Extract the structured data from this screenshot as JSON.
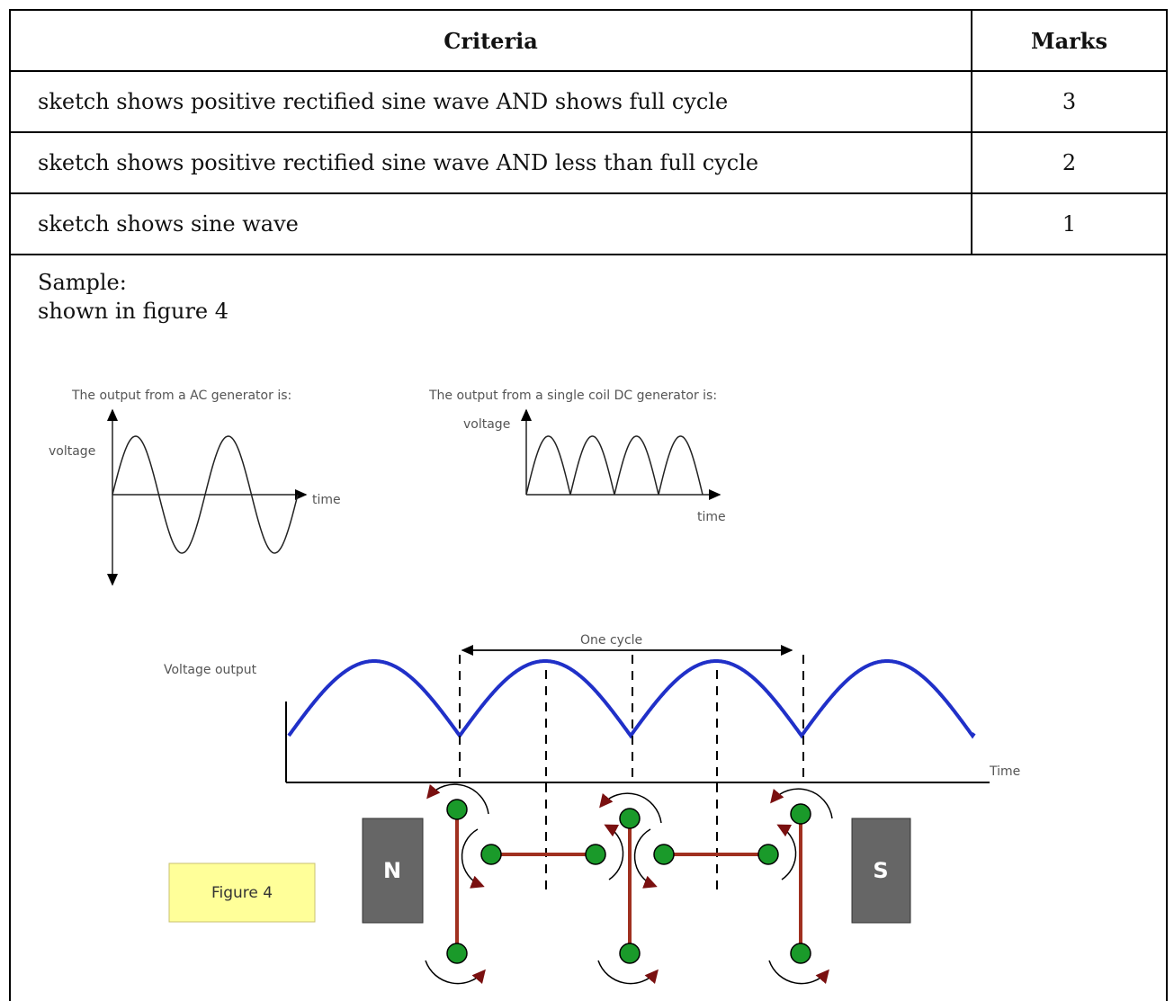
{
  "table": {
    "headers": [
      "Criteria",
      "Marks"
    ],
    "rows": [
      [
        "sketch shows positive rectified sine wave AND shows full cycle",
        3
      ],
      [
        "sketch shows positive rectified sine wave AND less than full cycle",
        2
      ],
      [
        "sketch shows  sine wave",
        1
      ]
    ]
  },
  "sample": {
    "label": "Sample:",
    "text": "shown in figure 4"
  },
  "figure": {
    "ac_title": "The output from a AC generator is:",
    "ac_y_label": "voltage",
    "ac_x_label": "time",
    "dc_title": "The output from a single coil DC generator is:",
    "dc_y_label": "voltage",
    "dc_x_label": "time",
    "cycle_label": "One cycle",
    "y_label": "Voltage output",
    "x_label": "Time",
    "magnet_north": "N",
    "magnet_south": "S",
    "caption": "Figure 4"
  }
}
